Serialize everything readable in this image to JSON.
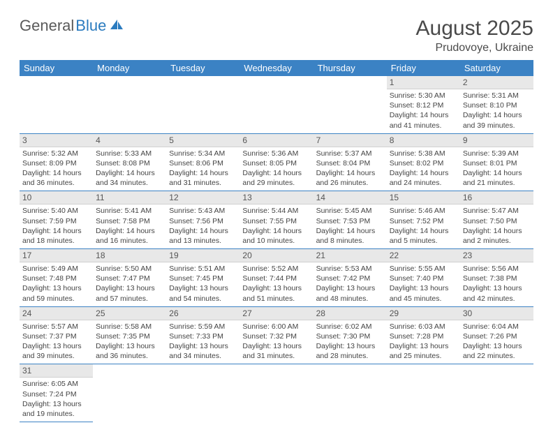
{
  "logo": {
    "text1": "General",
    "text2": "Blue"
  },
  "title": "August 2025",
  "location": "Prudovoye, Ukraine",
  "columns": [
    "Sunday",
    "Monday",
    "Tuesday",
    "Wednesday",
    "Thursday",
    "Friday",
    "Saturday"
  ],
  "colors": {
    "header_bg": "#3b82c4",
    "header_text": "#ffffff",
    "daynum_bg": "#e8e8e8",
    "border": "#3b82c4",
    "logo_gray": "#5a5a5a",
    "logo_blue": "#2b7bbf"
  },
  "weeks": [
    [
      null,
      null,
      null,
      null,
      null,
      {
        "n": "1",
        "sr": "Sunrise: 5:30 AM",
        "ss": "Sunset: 8:12 PM",
        "dl": "Daylight: 14 hours and 41 minutes."
      },
      {
        "n": "2",
        "sr": "Sunrise: 5:31 AM",
        "ss": "Sunset: 8:10 PM",
        "dl": "Daylight: 14 hours and 39 minutes."
      }
    ],
    [
      {
        "n": "3",
        "sr": "Sunrise: 5:32 AM",
        "ss": "Sunset: 8:09 PM",
        "dl": "Daylight: 14 hours and 36 minutes."
      },
      {
        "n": "4",
        "sr": "Sunrise: 5:33 AM",
        "ss": "Sunset: 8:08 PM",
        "dl": "Daylight: 14 hours and 34 minutes."
      },
      {
        "n": "5",
        "sr": "Sunrise: 5:34 AM",
        "ss": "Sunset: 8:06 PM",
        "dl": "Daylight: 14 hours and 31 minutes."
      },
      {
        "n": "6",
        "sr": "Sunrise: 5:36 AM",
        "ss": "Sunset: 8:05 PM",
        "dl": "Daylight: 14 hours and 29 minutes."
      },
      {
        "n": "7",
        "sr": "Sunrise: 5:37 AM",
        "ss": "Sunset: 8:04 PM",
        "dl": "Daylight: 14 hours and 26 minutes."
      },
      {
        "n": "8",
        "sr": "Sunrise: 5:38 AM",
        "ss": "Sunset: 8:02 PM",
        "dl": "Daylight: 14 hours and 24 minutes."
      },
      {
        "n": "9",
        "sr": "Sunrise: 5:39 AM",
        "ss": "Sunset: 8:01 PM",
        "dl": "Daylight: 14 hours and 21 minutes."
      }
    ],
    [
      {
        "n": "10",
        "sr": "Sunrise: 5:40 AM",
        "ss": "Sunset: 7:59 PM",
        "dl": "Daylight: 14 hours and 18 minutes."
      },
      {
        "n": "11",
        "sr": "Sunrise: 5:41 AM",
        "ss": "Sunset: 7:58 PM",
        "dl": "Daylight: 14 hours and 16 minutes."
      },
      {
        "n": "12",
        "sr": "Sunrise: 5:43 AM",
        "ss": "Sunset: 7:56 PM",
        "dl": "Daylight: 14 hours and 13 minutes."
      },
      {
        "n": "13",
        "sr": "Sunrise: 5:44 AM",
        "ss": "Sunset: 7:55 PM",
        "dl": "Daylight: 14 hours and 10 minutes."
      },
      {
        "n": "14",
        "sr": "Sunrise: 5:45 AM",
        "ss": "Sunset: 7:53 PM",
        "dl": "Daylight: 14 hours and 8 minutes."
      },
      {
        "n": "15",
        "sr": "Sunrise: 5:46 AM",
        "ss": "Sunset: 7:52 PM",
        "dl": "Daylight: 14 hours and 5 minutes."
      },
      {
        "n": "16",
        "sr": "Sunrise: 5:47 AM",
        "ss": "Sunset: 7:50 PM",
        "dl": "Daylight: 14 hours and 2 minutes."
      }
    ],
    [
      {
        "n": "17",
        "sr": "Sunrise: 5:49 AM",
        "ss": "Sunset: 7:48 PM",
        "dl": "Daylight: 13 hours and 59 minutes."
      },
      {
        "n": "18",
        "sr": "Sunrise: 5:50 AM",
        "ss": "Sunset: 7:47 PM",
        "dl": "Daylight: 13 hours and 57 minutes."
      },
      {
        "n": "19",
        "sr": "Sunrise: 5:51 AM",
        "ss": "Sunset: 7:45 PM",
        "dl": "Daylight: 13 hours and 54 minutes."
      },
      {
        "n": "20",
        "sr": "Sunrise: 5:52 AM",
        "ss": "Sunset: 7:44 PM",
        "dl": "Daylight: 13 hours and 51 minutes."
      },
      {
        "n": "21",
        "sr": "Sunrise: 5:53 AM",
        "ss": "Sunset: 7:42 PM",
        "dl": "Daylight: 13 hours and 48 minutes."
      },
      {
        "n": "22",
        "sr": "Sunrise: 5:55 AM",
        "ss": "Sunset: 7:40 PM",
        "dl": "Daylight: 13 hours and 45 minutes."
      },
      {
        "n": "23",
        "sr": "Sunrise: 5:56 AM",
        "ss": "Sunset: 7:38 PM",
        "dl": "Daylight: 13 hours and 42 minutes."
      }
    ],
    [
      {
        "n": "24",
        "sr": "Sunrise: 5:57 AM",
        "ss": "Sunset: 7:37 PM",
        "dl": "Daylight: 13 hours and 39 minutes."
      },
      {
        "n": "25",
        "sr": "Sunrise: 5:58 AM",
        "ss": "Sunset: 7:35 PM",
        "dl": "Daylight: 13 hours and 36 minutes."
      },
      {
        "n": "26",
        "sr": "Sunrise: 5:59 AM",
        "ss": "Sunset: 7:33 PM",
        "dl": "Daylight: 13 hours and 34 minutes."
      },
      {
        "n": "27",
        "sr": "Sunrise: 6:00 AM",
        "ss": "Sunset: 7:32 PM",
        "dl": "Daylight: 13 hours and 31 minutes."
      },
      {
        "n": "28",
        "sr": "Sunrise: 6:02 AM",
        "ss": "Sunset: 7:30 PM",
        "dl": "Daylight: 13 hours and 28 minutes."
      },
      {
        "n": "29",
        "sr": "Sunrise: 6:03 AM",
        "ss": "Sunset: 7:28 PM",
        "dl": "Daylight: 13 hours and 25 minutes."
      },
      {
        "n": "30",
        "sr": "Sunrise: 6:04 AM",
        "ss": "Sunset: 7:26 PM",
        "dl": "Daylight: 13 hours and 22 minutes."
      }
    ],
    [
      {
        "n": "31",
        "sr": "Sunrise: 6:05 AM",
        "ss": "Sunset: 7:24 PM",
        "dl": "Daylight: 13 hours and 19 minutes."
      },
      null,
      null,
      null,
      null,
      null,
      null
    ]
  ]
}
